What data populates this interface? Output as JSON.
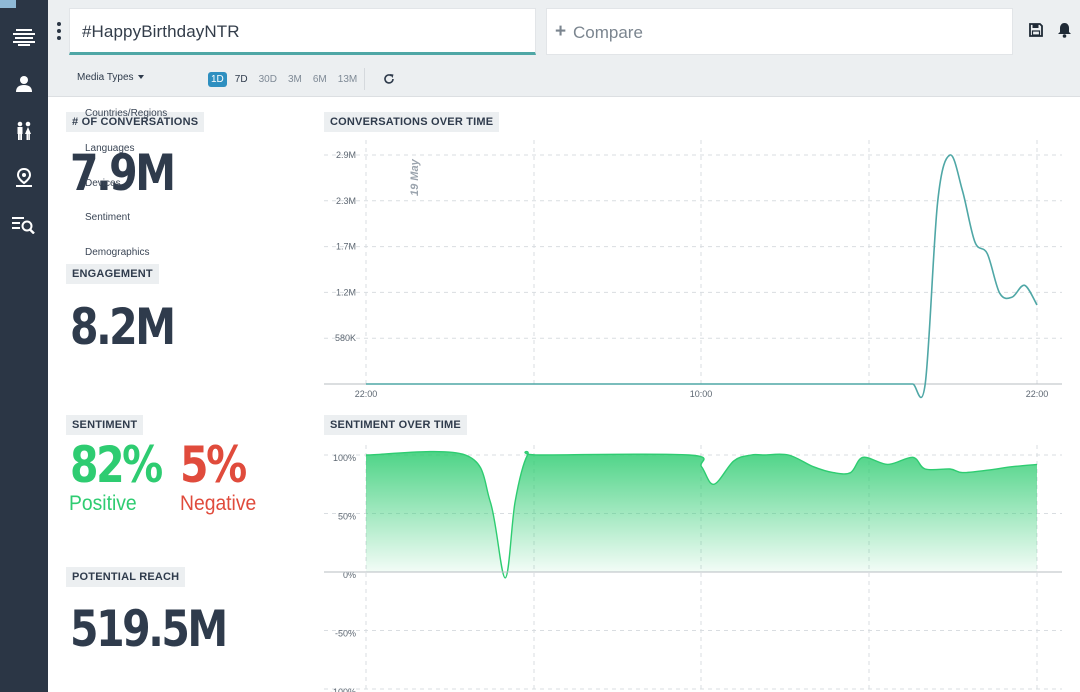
{
  "app": {
    "icons": {
      "logo": "layers-logo-icon",
      "users": "user-profile-icon",
      "people": "people-icon",
      "location": "location-pin-icon",
      "search_list": "list-search-icon",
      "save": "save-icon",
      "bell": "bell-icon",
      "refresh": "refresh-icon"
    },
    "colors": {
      "sidebar": "#2b3645",
      "accent": "#4fa7a6",
      "positive": "#2ecc71",
      "negative": "#e04b3c",
      "active_range": "#2e8fc0"
    }
  },
  "search": {
    "value": "#HappyBirthdayNTR"
  },
  "compare": {
    "label": "Compare"
  },
  "filters": {
    "media_types_label": "Media Types",
    "dropdown_items": [
      "Countries/Regions",
      "Languages",
      "Devices",
      "Sentiment",
      "Demographics"
    ],
    "ranges": [
      {
        "label": "1D",
        "active": true
      },
      {
        "label": "7D",
        "active": false
      },
      {
        "label": "30D",
        "active": false
      },
      {
        "label": "3M",
        "active": false
      },
      {
        "label": "6M",
        "active": false
      },
      {
        "label": "13M",
        "active": false
      }
    ]
  },
  "metrics": {
    "conversations": {
      "label": "# OF CONVERSATIONS",
      "value": "7.9M"
    },
    "engagement": {
      "label": "ENGAGEMENT",
      "value": "8.2M"
    },
    "sentiment": {
      "label": "SENTIMENT",
      "positive_value": "82%",
      "positive_label": "Positive",
      "negative_value": "5%",
      "negative_label": "Negative"
    },
    "reach": {
      "label": "POTENTIAL REACH",
      "value": "519.5M"
    }
  },
  "chart_data": [
    {
      "type": "line",
      "title": "CONVERSATIONS OVER TIME",
      "annotation": "19 May",
      "x_ticks": [
        "22:00",
        "10:00",
        "22:00"
      ],
      "y_ticks": [
        "2.9M",
        "2.3M",
        "1.7M",
        "1.2M",
        "580K"
      ],
      "ylim": [
        0,
        2900000
      ],
      "grid": true,
      "color": "#4fa7a6",
      "series": [
        {
          "x": [
            0,
            2,
            4,
            6,
            8,
            10,
            12,
            14,
            16,
            18,
            19,
            19.5,
            20,
            20.5,
            21,
            21.5,
            22,
            22.5,
            23,
            23.5,
            24,
            24.5,
            25,
            25.5,
            26,
            26.5,
            27
          ],
          "values": [
            0,
            0,
            0,
            0,
            0,
            0,
            0,
            0,
            0,
            0,
            0,
            0,
            0,
            0,
            0,
            0,
            0,
            0.5,
            2300000,
            2900000,
            2450000,
            1800000,
            1650000,
            1150000,
            1100000,
            1250000,
            1000000
          ]
        }
      ]
    },
    {
      "type": "area",
      "title": "SENTIMENT OVER TIME",
      "y_ticks": [
        "100%",
        "50%",
        "0%",
        "-50%",
        "-100%"
      ],
      "ylim": [
        -100,
        100
      ],
      "grid": true,
      "color": "#2ecc71",
      "series": [
        {
          "x": [
            0,
            4,
            5,
            5.6,
            6,
            6.5,
            7,
            13,
            13.5,
            14,
            14.8,
            15.5,
            16,
            17,
            18,
            18.8,
            19.5,
            20,
            21,
            22,
            22.5,
            23.5,
            24,
            25,
            26,
            27
          ],
          "values": [
            100,
            100,
            60,
            -5,
            60,
            100,
            100,
            100,
            90,
            75,
            95,
            100,
            100,
            100,
            90,
            85,
            85,
            98,
            92,
            98,
            88,
            88,
            85,
            87,
            90,
            92
          ]
        }
      ]
    }
  ]
}
